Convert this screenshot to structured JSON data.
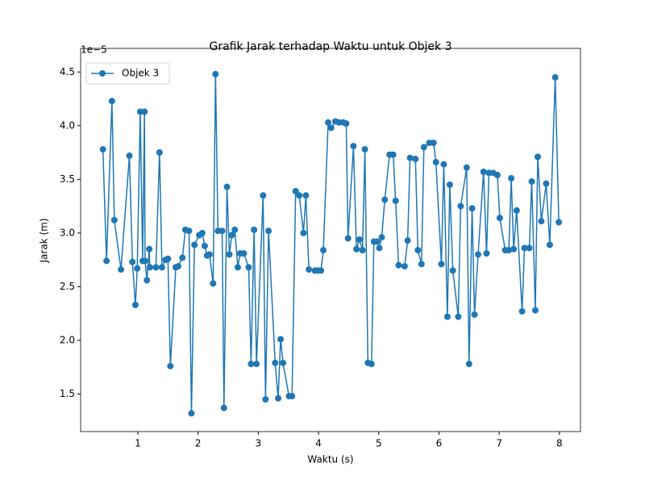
{
  "chart_data": {
    "type": "line",
    "title": "Grafik Jarak terhadap Waktu untuk Objek 3",
    "x_label": "Waktu (s)",
    "y_label": "Jarak (m)",
    "y_offset_label": "1e−5",
    "xlim": [
      0.05,
      8.35
    ],
    "ylim": [
      1.15,
      4.72
    ],
    "xticks": [
      1,
      2,
      3,
      4,
      5,
      6,
      7,
      8
    ],
    "yticks": [
      1.5,
      {
        "value": 2,
        "label": "2.0"
      },
      2.5,
      {
        "value": 3,
        "label": "3.0"
      },
      3.5,
      {
        "value": 4,
        "label": "4.0"
      },
      4.5
    ],
    "legend": "upper left",
    "marker": true,
    "series": [
      {
        "name": "Objek 3",
        "color": "#1f77b4",
        "x": [
          0.42,
          0.48,
          0.57,
          0.61,
          0.72,
          0.86,
          0.91,
          0.96,
          0.99,
          1.04,
          1.08,
          1.11,
          1.12,
          1.15,
          1.19,
          1.2,
          1.3,
          1.36,
          1.4,
          1.46,
          1.5,
          1.54,
          1.63,
          1.67,
          1.74,
          1.79,
          1.85,
          1.89,
          1.94,
          2.02,
          2.07,
          2.11,
          2.15,
          2.19,
          2.25,
          2.29,
          2.33,
          2.4,
          2.43,
          2.48,
          2.52,
          2.56,
          2.61,
          2.66,
          2.7,
          2.76,
          2.84,
          2.88,
          2.93,
          2.97,
          3.08,
          3.12,
          3.17,
          3.28,
          3.33,
          3.37,
          3.41,
          3.51,
          3.56,
          3.62,
          3.68,
          3.75,
          3.79,
          3.84,
          3.94,
          3.99,
          4.04,
          4.08,
          4.16,
          4.21,
          4.28,
          4.34,
          4.41,
          4.46,
          4.49,
          4.58,
          4.63,
          4.68,
          4.73,
          4.77,
          4.82,
          4.88,
          4.92,
          4.97,
          5.01,
          5.05,
          5.1,
          5.18,
          5.24,
          5.28,
          5.33,
          5.43,
          5.48,
          5.52,
          5.61,
          5.65,
          5.71,
          5.75,
          5.84,
          5.91,
          5.95,
          6.04,
          6.08,
          6.14,
          6.18,
          6.23,
          6.32,
          6.36,
          6.46,
          6.5,
          6.55,
          6.59,
          6.65,
          6.74,
          6.79,
          6.83,
          6.9,
          6.97,
          7.01,
          7.1,
          7.16,
          7.2,
          7.24,
          7.29,
          7.38,
          7.42,
          7.5,
          7.54,
          7.6,
          7.64,
          7.7,
          7.78,
          7.84,
          7.93,
          7.99
        ],
        "values": [
          3.78,
          2.74,
          4.23,
          3.12,
          2.66,
          3.72,
          2.73,
          2.33,
          2.67,
          4.13,
          2.74,
          4.13,
          2.74,
          2.56,
          2.85,
          2.68,
          2.68,
          3.75,
          2.68,
          2.75,
          2.76,
          1.76,
          2.68,
          2.69,
          2.77,
          3.03,
          3.02,
          1.32,
          2.89,
          2.98,
          3.0,
          2.88,
          2.79,
          2.8,
          2.53,
          4.48,
          3.02,
          3.02,
          1.37,
          3.43,
          2.8,
          2.98,
          3.03,
          2.68,
          2.81,
          2.81,
          2.68,
          1.78,
          3.03,
          1.78,
          3.35,
          1.45,
          3.02,
          1.79,
          1.46,
          2.01,
          1.79,
          1.48,
          1.48,
          3.39,
          3.35,
          3.0,
          3.35,
          2.66,
          2.65,
          2.65,
          2.65,
          2.84,
          4.03,
          3.98,
          4.04,
          4.03,
          4.03,
          4.02,
          2.95,
          3.81,
          2.85,
          2.94,
          2.84,
          3.78,
          1.79,
          1.78,
          2.92,
          2.92,
          2.86,
          2.96,
          3.31,
          3.73,
          3.73,
          3.3,
          2.7,
          2.69,
          2.93,
          3.7,
          3.69,
          2.84,
          2.71,
          3.8,
          3.84,
          3.84,
          3.66,
          2.71,
          3.64,
          2.22,
          3.45,
          2.65,
          2.22,
          3.25,
          3.61,
          1.78,
          3.23,
          2.24,
          2.8,
          3.57,
          2.81,
          3.56,
          3.56,
          3.54,
          3.14,
          2.84,
          2.84,
          3.51,
          2.85,
          3.21,
          2.27,
          2.86,
          2.86,
          3.48,
          2.28,
          3.71,
          3.11,
          3.46,
          2.89,
          4.45,
          3.1
        ]
      }
    ]
  }
}
